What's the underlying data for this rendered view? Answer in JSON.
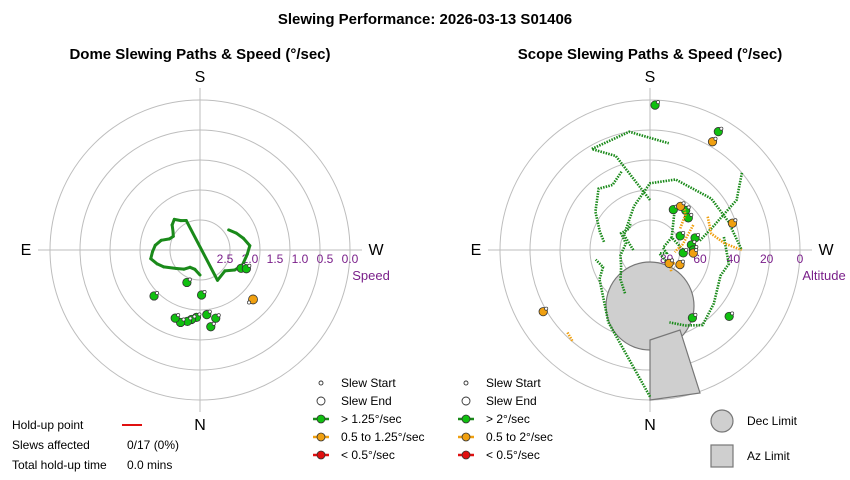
{
  "title": "Slewing Performance: 2026-03-13 S01406",
  "chart_data": [
    {
      "type": "polar-scatter",
      "title": "Dome Slewing Paths & Speed (°/sec)",
      "cardinals": {
        "top": "S",
        "left": "E",
        "right": "W",
        "bottom": "N"
      },
      "radial_label": "Speed",
      "radial_ticks": [
        "2.5",
        "2.0",
        "1.5",
        "1.0",
        "0.5",
        "0.0"
      ],
      "radial_range": [
        3.0,
        0.0
      ],
      "legend": [
        {
          "label": "Slew Start",
          "marker": "start"
        },
        {
          "label": "Slew End",
          "marker": "end"
        },
        {
          "label": "> 1.25°/sec",
          "color": "#10c010"
        },
        {
          "label": "0.5 to 1.25°/sec",
          "color": "#f0a010"
        },
        {
          "label": "< 0.5°/sec",
          "color": "#e01010"
        }
      ],
      "series": [
        {
          "name": "> 1.25°/sec",
          "color": "#10c010",
          "points": [
            [
              180,
              2.5
            ],
            [
              165,
              2.6
            ],
            [
              150,
              2.6
            ],
            [
              140,
              2.5
            ],
            [
              128,
              2.4
            ],
            [
              115,
              2.2
            ],
            [
              108,
              2.1
            ],
            [
              100,
              2.0
            ],
            [
              92,
              2.05
            ],
            [
              84,
              2.1
            ],
            [
              76,
              2.2
            ],
            [
              70,
              2.35
            ],
            [
              63,
              2.4
            ],
            [
              56,
              2.35
            ],
            [
              48,
              2.25
            ],
            [
              40,
              2.2
            ],
            [
              33,
              2.3
            ],
            [
              25,
              2.35
            ],
            [
              210,
              2.3
            ],
            [
              230,
              2.35
            ],
            [
              240,
              2.2
            ],
            [
              250,
              2.1
            ],
            [
              265,
              2.05
            ],
            [
              275,
              2.0
            ],
            [
              285,
              2.1
            ],
            [
              295,
              2.2
            ],
            [
              305,
              2.3
            ]
          ],
          "end_points": [
            [
              182,
              2.1
            ],
            [
              186,
              1.7
            ],
            [
              177,
              1.65
            ],
            [
              173,
              1.6
            ],
            [
              170,
              1.55
            ],
            [
              165,
              1.5
            ],
            [
              160,
              1.55
            ],
            [
              188,
              1.45
            ],
            [
              193,
              1.6
            ],
            [
              158,
              2.3
            ],
            [
              135,
              1.7
            ],
            [
              246,
              2.1
            ],
            [
              248,
              2.0
            ]
          ]
        }
      ],
      "highlight_points": [
        {
          "color": "#f0a010",
          "theta": 227,
          "r": 1.55
        }
      ]
    },
    {
      "type": "polar-scatter",
      "title": "Scope Slewing Paths & Speed (°/sec)",
      "cardinals": {
        "top": "S",
        "left": "E",
        "right": "W",
        "bottom": "N"
      },
      "radial_label": "Altitude",
      "radial_ticks": [
        "80",
        "60",
        "40",
        "20",
        "0"
      ],
      "radial_range": [
        90,
        0
      ],
      "legend": [
        {
          "label": "Slew Start",
          "marker": "start"
        },
        {
          "label": "Slew End",
          "marker": "end"
        },
        {
          "label": "> 2°/sec",
          "color": "#10c010"
        },
        {
          "label": "0.5 to 2°/sec",
          "color": "#f0a010"
        },
        {
          "label": "< 0.5°/sec",
          "color": "#e01010"
        }
      ],
      "limits": [
        {
          "label": "Dec Limit",
          "shape": "circle"
        },
        {
          "label": "Az Limit",
          "shape": "square"
        }
      ],
      "series": [
        {
          "name": "> 2°/sec",
          "color": "#10c010",
          "paths": [
            [
              [
                90,
                80
              ],
              [
                60,
                72
              ],
              [
                20,
                62
              ],
              [
                0,
                50
              ],
              [
                340,
                45
              ],
              [
                310,
                42
              ],
              [
                290,
                40
              ],
              [
                270,
                35
              ]
            ],
            [
              [
                180,
                2
              ],
              [
                150,
                40
              ],
              [
                120,
                55
              ],
              [
                110,
                60
              ],
              [
                100,
                57
              ]
            ],
            [
              [
                150,
                60
              ],
              [
                135,
                65
              ],
              [
                120,
                70
              ],
              [
                100,
                72
              ],
              [
                75,
                75
              ],
              [
                60,
                70
              ],
              [
                45,
                72
              ],
              [
                35,
                70
              ]
            ],
            [
              [
                280,
                45
              ],
              [
                260,
                42
              ],
              [
                250,
                45
              ],
              [
                230,
                40
              ],
              [
                215,
                35
              ],
              [
                205,
                40
              ],
              [
                195,
                45
              ]
            ],
            [
              [
                300,
                75
              ],
              [
                280,
                82
              ],
              [
                260,
                80
              ],
              [
                250,
                84
              ],
              [
                235,
                78
              ]
            ],
            [
              [
                20,
                40
              ],
              [
                30,
                45
              ],
              [
                40,
                42
              ],
              [
                55,
                50
              ],
              [
                70,
                58
              ],
              [
                80,
                62
              ]
            ],
            [
              [
                0,
                60
              ],
              [
                20,
                30
              ],
              [
                30,
                20
              ],
              [
                10,
                18
              ],
              [
                350,
                25
              ]
            ],
            [
              [
                310,
                18
              ],
              [
                300,
                30
              ],
              [
                290,
                50
              ],
              [
                280,
                60
              ]
            ],
            [
              [
                330,
                60
              ],
              [
                300,
                75
              ],
              [
                270,
                70
              ]
            ]
          ],
          "end_points": [
            [
              358,
              3
            ],
            [
              330,
              62
            ],
            [
              318,
              58
            ],
            [
              310,
              60
            ],
            [
              295,
              70
            ],
            [
              285,
              62
            ],
            [
              277,
              65
            ],
            [
              270,
              64
            ],
            [
              265,
              70
            ],
            [
              230,
              28
            ],
            [
              212,
              42
            ],
            [
              330,
              8
            ]
          ]
        },
        {
          "name": "0.5 to 2°/sec",
          "color": "#f0a010",
          "paths": [
            [
              [
                300,
                60
              ],
              [
                280,
                70
              ],
              [
                270,
                74
              ],
              [
                265,
                75
              ]
            ],
            [
              [
                320,
                58
              ],
              [
                315,
                60
              ],
              [
                305,
                68
              ]
            ],
            [
              [
                245,
                70
              ],
              [
                243,
                72
              ],
              [
                240,
                74
              ],
              [
                238,
                76
              ],
              [
                236,
                75
              ]
            ],
            [
              [
                300,
                50
              ],
              [
                285,
                52
              ],
              [
                275,
                45
              ],
              [
                270,
                35
              ]
            ],
            [
              [
                135,
                20
              ],
              [
                140,
                18
              ]
            ],
            [
              [
                225,
                72
              ],
              [
                230,
                74
              ]
            ]
          ],
          "end_points": [
            [
              325,
              58
            ],
            [
              288,
              38
            ],
            [
              266,
              64
            ],
            [
              244,
              70
            ],
            [
              235,
              76
            ],
            [
              120,
              16
            ],
            [
              330,
              15
            ]
          ]
        }
      ]
    }
  ],
  "holdup": {
    "point_label": "Hold-up point",
    "point_color": "#e01010",
    "slews_label": "Slews affected",
    "slews_value": "0/17 (0%)",
    "time_label": "Total hold-up time",
    "time_value": "0.0 mins"
  }
}
